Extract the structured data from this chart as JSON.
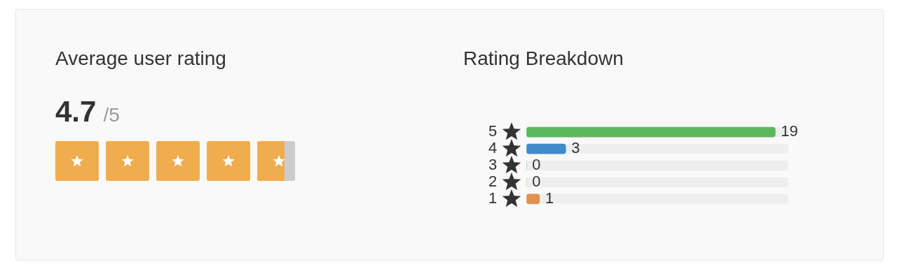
{
  "chart_data": [
    {
      "type": "other",
      "title": "Average user rating",
      "annotations": [
        "4.7",
        "/5"
      ]
    },
    {
      "type": "bar",
      "orientation": "horizontal",
      "title": "Rating Breakdown",
      "categories": [
        "5",
        "4",
        "3",
        "2",
        "1"
      ],
      "values": [
        19,
        3,
        0,
        0,
        1
      ],
      "colors": [
        "#5cb85c",
        "#428bca",
        "#5bc0de",
        "#f0ad4e",
        "#e0914f"
      ],
      "tick_labels": "y",
      "grid": false,
      "legend": false,
      "data_labels": true
    }
  ]
}
